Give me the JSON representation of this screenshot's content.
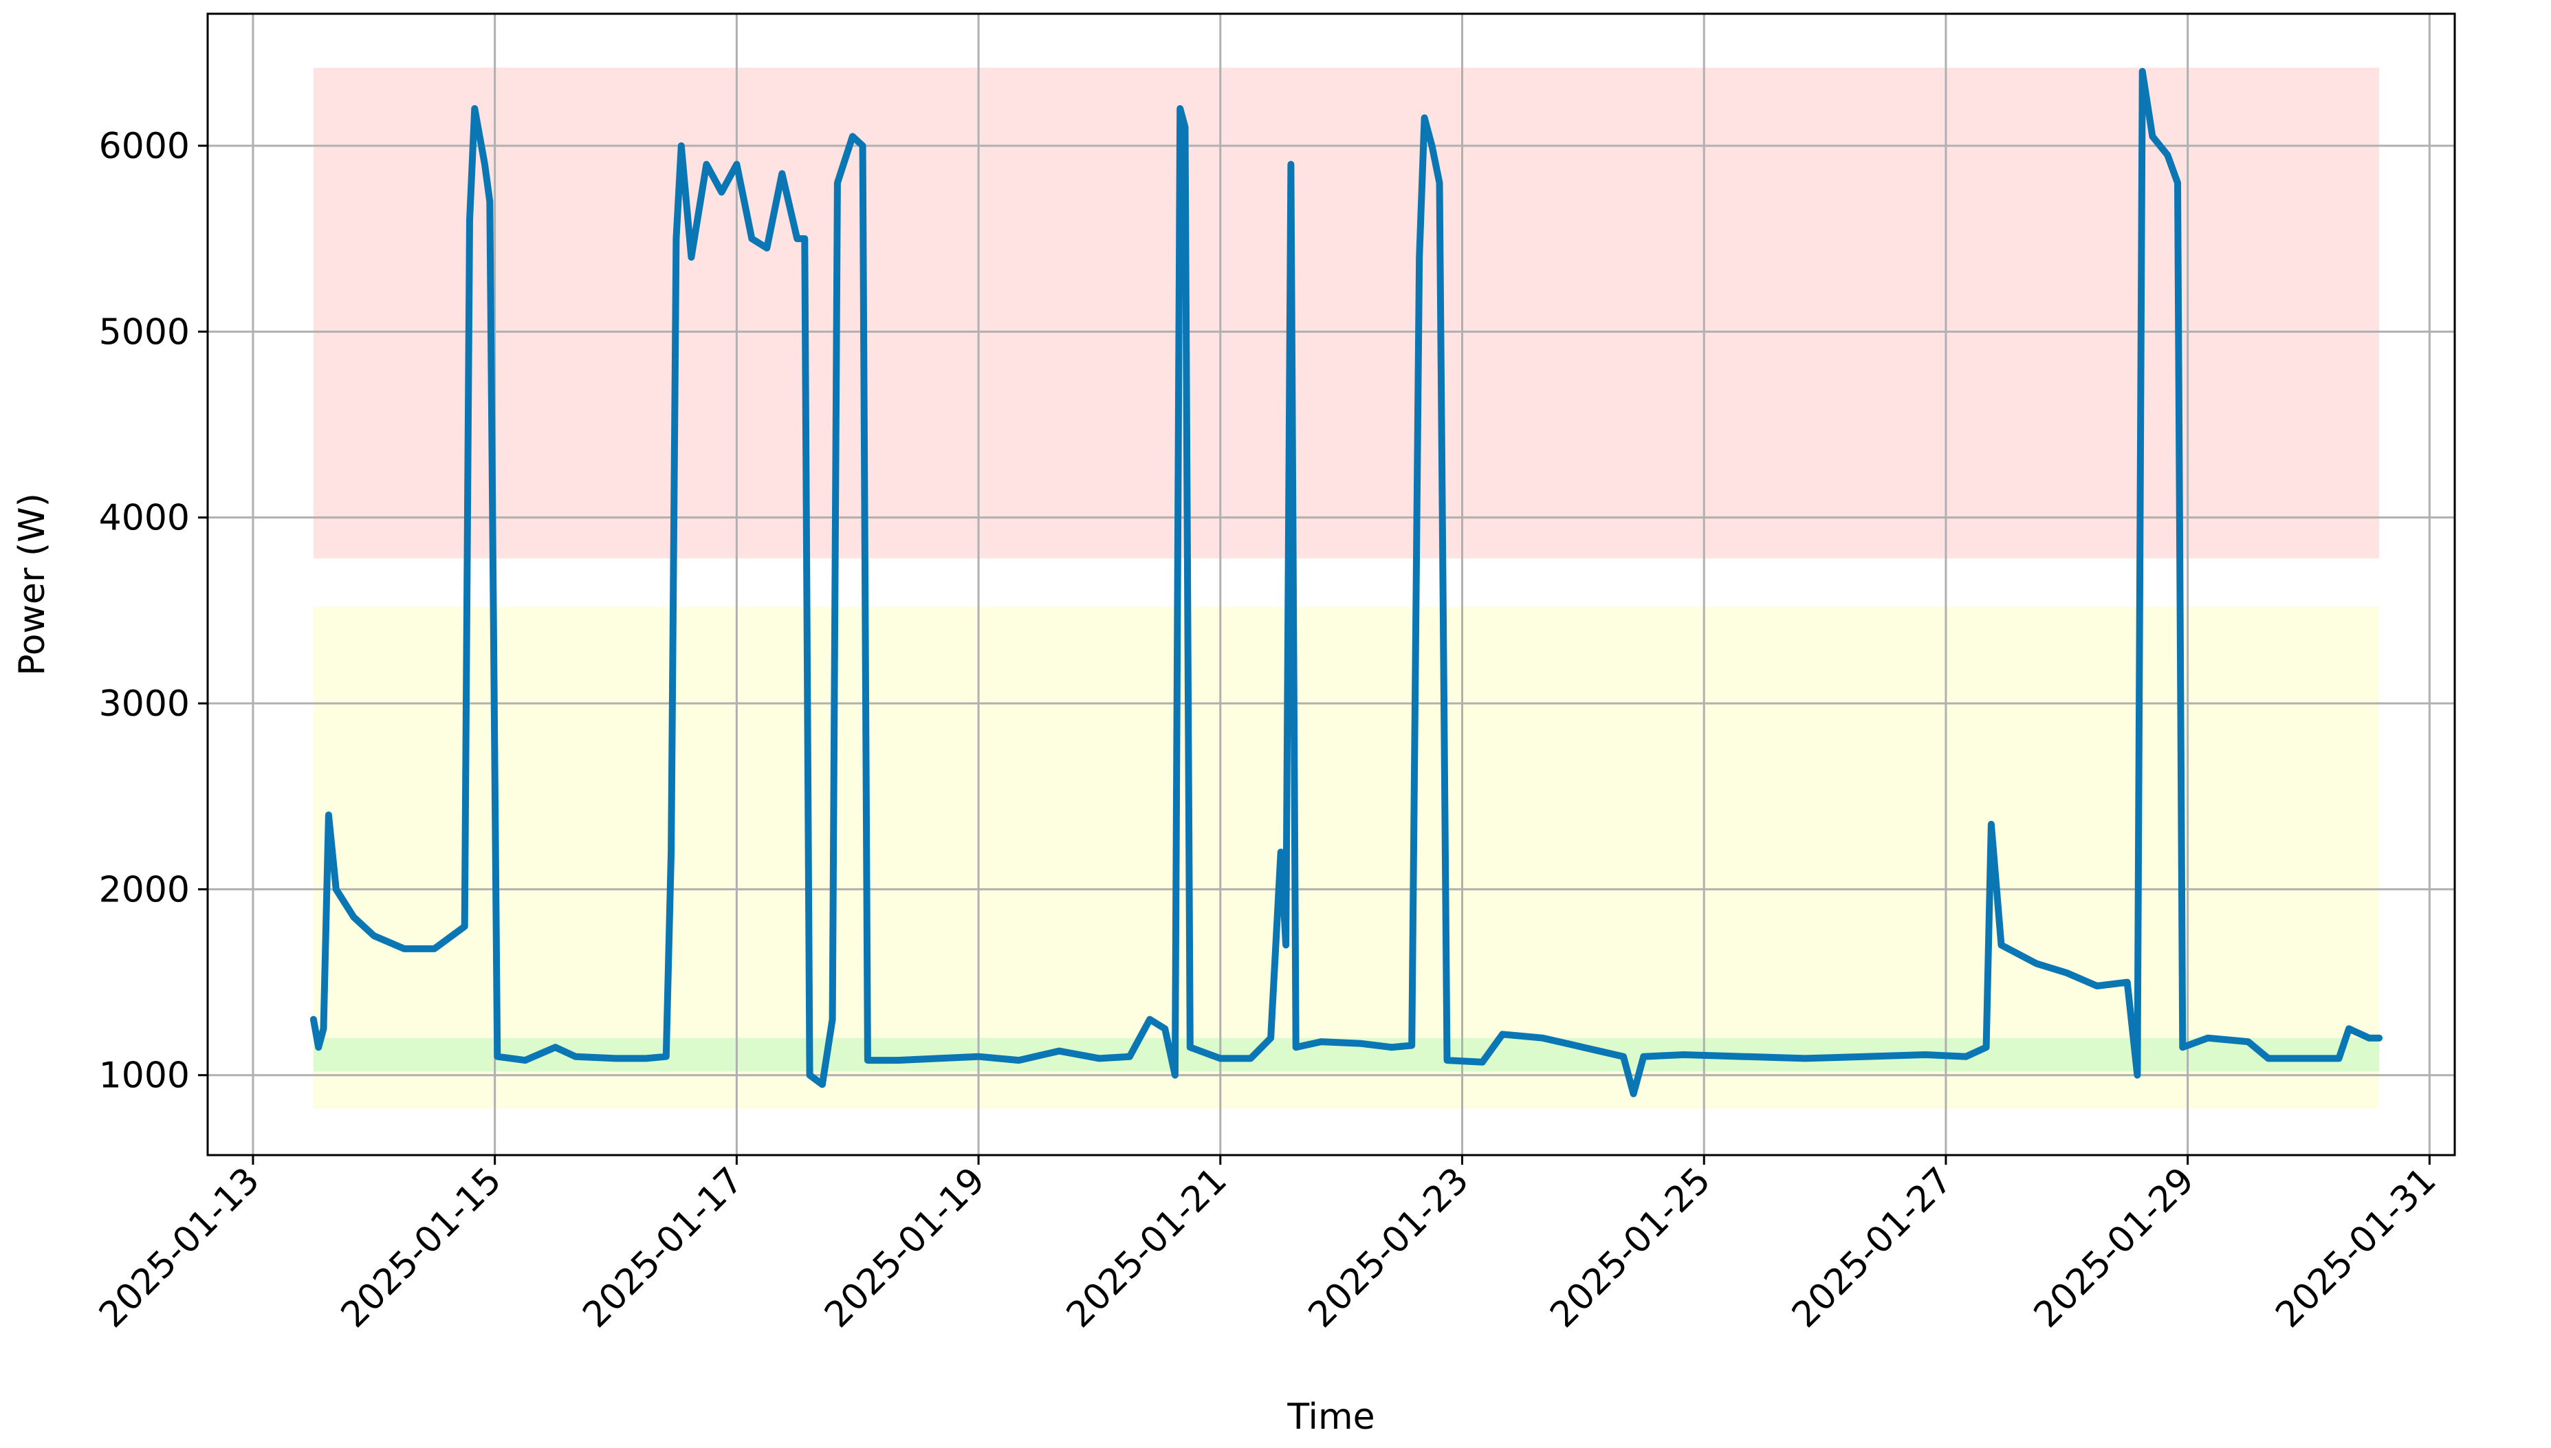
{
  "chart_data": {
    "type": "line",
    "xlabel": "Time",
    "ylabel": "Power (W)",
    "x_ticks": [
      "2025-01-13",
      "2025-01-15",
      "2025-01-17",
      "2025-01-19",
      "2025-01-21",
      "2025-01-23",
      "2025-01-25",
      "2025-01-27",
      "2025-01-29",
      "2025-01-31"
    ],
    "y_ticks": [
      "1000",
      "2000",
      "3000",
      "4000",
      "5000",
      "6000"
    ],
    "xlim": [
      "2025-01-12T15:00",
      "2025-01-31T05:00"
    ],
    "ylim": [
      570,
      6710
    ],
    "grid": true,
    "bands": [
      {
        "x0": "2025-01-13T12:00",
        "x1": "2025-01-30T14:00",
        "y0": 3780,
        "y1": 6420,
        "color": "#ffe3e3"
      },
      {
        "x0": "2025-01-13T12:00",
        "x1": "2025-01-30T14:00",
        "y0": 820,
        "y1": 3520,
        "color": "#fefee0"
      },
      {
        "x0": "2025-01-13T12:00",
        "x1": "2025-01-30T14:00",
        "y0": 1020,
        "y1": 1200,
        "color": "#dbfbcc"
      }
    ],
    "series": [
      {
        "color": "#0a76b4",
        "points": [
          [
            "2025-01-13T12:00",
            1300
          ],
          [
            "2025-01-13T13:00",
            1150
          ],
          [
            "2025-01-13T14:00",
            1250
          ],
          [
            "2025-01-13T15:00",
            2400
          ],
          [
            "2025-01-13T16:30",
            2000
          ],
          [
            "2025-01-13T20:00",
            1850
          ],
          [
            "2025-01-14T00:00",
            1750
          ],
          [
            "2025-01-14T06:00",
            1680
          ],
          [
            "2025-01-14T12:00",
            1680
          ],
          [
            "2025-01-14T16:00",
            1760
          ],
          [
            "2025-01-14T18:00",
            1800
          ],
          [
            "2025-01-14T19:00",
            5600
          ],
          [
            "2025-01-14T20:00",
            6200
          ],
          [
            "2025-01-14T22:00",
            5900
          ],
          [
            "2025-01-14T23:00",
            5700
          ],
          [
            "2025-01-15T00:30",
            1100
          ],
          [
            "2025-01-15T06:00",
            1080
          ],
          [
            "2025-01-15T12:00",
            1150
          ],
          [
            "2025-01-15T16:00",
            1100
          ],
          [
            "2025-01-16T00:00",
            1090
          ],
          [
            "2025-01-16T06:00",
            1090
          ],
          [
            "2025-01-16T10:00",
            1100
          ],
          [
            "2025-01-16T11:00",
            2200
          ],
          [
            "2025-01-16T12:00",
            5500
          ],
          [
            "2025-01-16T13:00",
            6000
          ],
          [
            "2025-01-16T15:00",
            5400
          ],
          [
            "2025-01-16T18:00",
            5900
          ],
          [
            "2025-01-16T21:00",
            5750
          ],
          [
            "2025-01-17T00:00",
            5900
          ],
          [
            "2025-01-17T03:00",
            5500
          ],
          [
            "2025-01-17T06:00",
            5450
          ],
          [
            "2025-01-17T09:00",
            5850
          ],
          [
            "2025-01-17T12:00",
            5500
          ],
          [
            "2025-01-17T13:30",
            5500
          ],
          [
            "2025-01-17T14:30",
            1000
          ],
          [
            "2025-01-17T17:00",
            950
          ],
          [
            "2025-01-17T19:00",
            1300
          ],
          [
            "2025-01-17T20:00",
            5800
          ],
          [
            "2025-01-17T23:00",
            6050
          ],
          [
            "2025-01-18T01:00",
            6000
          ],
          [
            "2025-01-18T02:00",
            1080
          ],
          [
            "2025-01-18T08:00",
            1080
          ],
          [
            "2025-01-18T16:00",
            1090
          ],
          [
            "2025-01-19T00:00",
            1100
          ],
          [
            "2025-01-19T08:00",
            1080
          ],
          [
            "2025-01-19T16:00",
            1130
          ],
          [
            "2025-01-20T00:00",
            1090
          ],
          [
            "2025-01-20T06:00",
            1100
          ],
          [
            "2025-01-20T10:00",
            1300
          ],
          [
            "2025-01-20T13:00",
            1250
          ],
          [
            "2025-01-20T15:00",
            1000
          ],
          [
            "2025-01-20T16:00",
            6200
          ],
          [
            "2025-01-20T17:00",
            6100
          ],
          [
            "2025-01-20T18:00",
            1150
          ],
          [
            "2025-01-21T00:00",
            1090
          ],
          [
            "2025-01-21T06:00",
            1090
          ],
          [
            "2025-01-21T10:00",
            1200
          ],
          [
            "2025-01-21T12:00",
            2200
          ],
          [
            "2025-01-21T13:00",
            1700
          ],
          [
            "2025-01-21T14:00",
            5900
          ],
          [
            "2025-01-21T15:00",
            1150
          ],
          [
            "2025-01-21T20:00",
            1180
          ],
          [
            "2025-01-22T04:00",
            1170
          ],
          [
            "2025-01-22T10:00",
            1150
          ],
          [
            "2025-01-22T14:00",
            1160
          ],
          [
            "2025-01-22T15:30",
            5400
          ],
          [
            "2025-01-22T16:30",
            6150
          ],
          [
            "2025-01-22T18:00",
            6000
          ],
          [
            "2025-01-22T19:30",
            5800
          ],
          [
            "2025-01-22T21:00",
            1080
          ],
          [
            "2025-01-23T04:00",
            1070
          ],
          [
            "2025-01-23T08:00",
            1220
          ],
          [
            "2025-01-23T16:00",
            1200
          ],
          [
            "2025-01-24T00:00",
            1150
          ],
          [
            "2025-01-24T08:00",
            1100
          ],
          [
            "2025-01-24T10:00",
            900
          ],
          [
            "2025-01-24T12:00",
            1100
          ],
          [
            "2025-01-24T20:00",
            1110
          ],
          [
            "2025-01-25T08:00",
            1100
          ],
          [
            "2025-01-25T20:00",
            1090
          ],
          [
            "2025-01-26T08:00",
            1100
          ],
          [
            "2025-01-26T20:00",
            1110
          ],
          [
            "2025-01-27T04:00",
            1100
          ],
          [
            "2025-01-27T08:00",
            1150
          ],
          [
            "2025-01-27T09:00",
            2350
          ],
          [
            "2025-01-27T11:00",
            1700
          ],
          [
            "2025-01-27T18:00",
            1600
          ],
          [
            "2025-01-28T00:00",
            1550
          ],
          [
            "2025-01-28T06:00",
            1480
          ],
          [
            "2025-01-28T12:00",
            1500
          ],
          [
            "2025-01-28T14:00",
            1000
          ],
          [
            "2025-01-28T15:00",
            6400
          ],
          [
            "2025-01-28T17:00",
            6050
          ],
          [
            "2025-01-28T20:00",
            5950
          ],
          [
            "2025-01-28T22:00",
            5800
          ],
          [
            "2025-01-28T23:00",
            1150
          ],
          [
            "2025-01-29T04:00",
            1200
          ],
          [
            "2025-01-29T12:00",
            1180
          ],
          [
            "2025-01-29T16:00",
            1090
          ],
          [
            "2025-01-30T00:00",
            1090
          ],
          [
            "2025-01-30T06:00",
            1090
          ],
          [
            "2025-01-30T08:00",
            1250
          ],
          [
            "2025-01-30T12:00",
            1200
          ],
          [
            "2025-01-30T14:00",
            1200
          ]
        ]
      }
    ]
  }
}
